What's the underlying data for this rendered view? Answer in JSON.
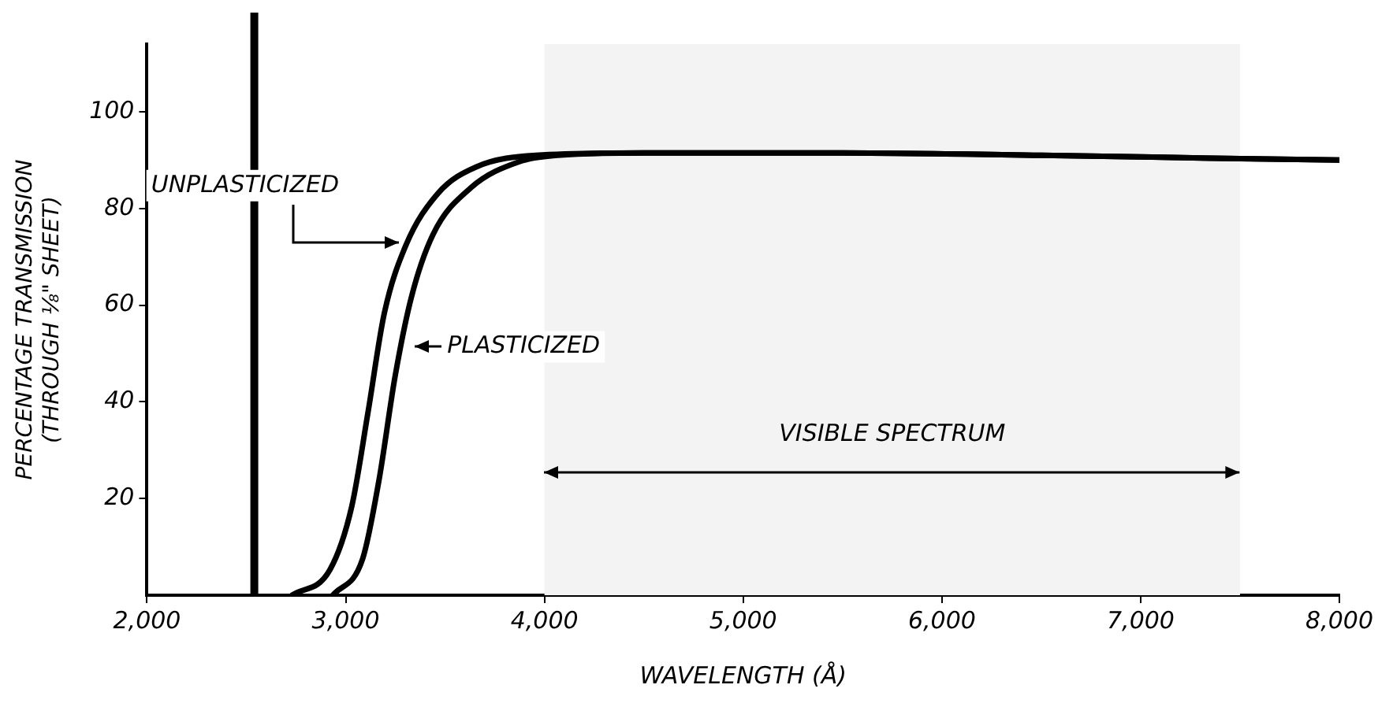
{
  "chart_data": {
    "type": "line",
    "xlabel": "WAVELENGTH (Å)",
    "ylabel": "PERCENTAGE TRANSMISSION\n(THROUGH ⅛\" SHEET)",
    "xlim": [
      2000,
      8000
    ],
    "ylim": [
      0,
      114
    ],
    "xticks": [
      {
        "value": 2000,
        "label": "2,000"
      },
      {
        "value": 3000,
        "label": "3,000"
      },
      {
        "value": 4000,
        "label": "4,000"
      },
      {
        "value": 5000,
        "label": "5,000"
      },
      {
        "value": 6000,
        "label": "6,000"
      },
      {
        "value": 7000,
        "label": "7,000"
      },
      {
        "value": 8000,
        "label": "8,000"
      }
    ],
    "yticks": [
      20,
      40,
      60,
      80,
      100
    ],
    "series": [
      {
        "color": "#000000",
        "x": [
          2730,
          2921,
          3030,
          3112,
          3194,
          3303,
          3466,
          3657,
          3957,
          4500,
          5500,
          6500,
          7500,
          8000
        ],
        "values": [
          0,
          5.3,
          18.3,
          37.8,
          58.3,
          72.4,
          83.2,
          88.6,
          91.0,
          91.5,
          91.5,
          91.0,
          90.3,
          90.0
        ]
      },
      {
        "color": "#000000",
        "x": [
          2935,
          3085,
          3167,
          3249,
          3330,
          3439,
          3630,
          3875,
          4066,
          4500,
          5500,
          6500,
          7500,
          8000
        ],
        "values": [
          0,
          7.5,
          23.7,
          45.4,
          61.6,
          74.6,
          84.3,
          89.7,
          91.0,
          91.5,
          91.5,
          91.0,
          90.3,
          90.0
        ]
      }
    ],
    "ref_lines": [
      {
        "axis": "x",
        "value": 2540,
        "color": "#000000"
      }
    ],
    "bands": [
      {
        "axis": "x",
        "from": 4000,
        "to": 7500,
        "label": "VISIBLE SPECTRUM"
      }
    ],
    "annotations": [
      {
        "text": "UNPLASTICIZED",
        "x": 3290,
        "y": 73
      },
      {
        "text": "PLASTICIZED",
        "x": 3320,
        "y": 53
      }
    ],
    "grid": false,
    "legend": false,
    "marker": "none",
    "line_style": "solid"
  }
}
